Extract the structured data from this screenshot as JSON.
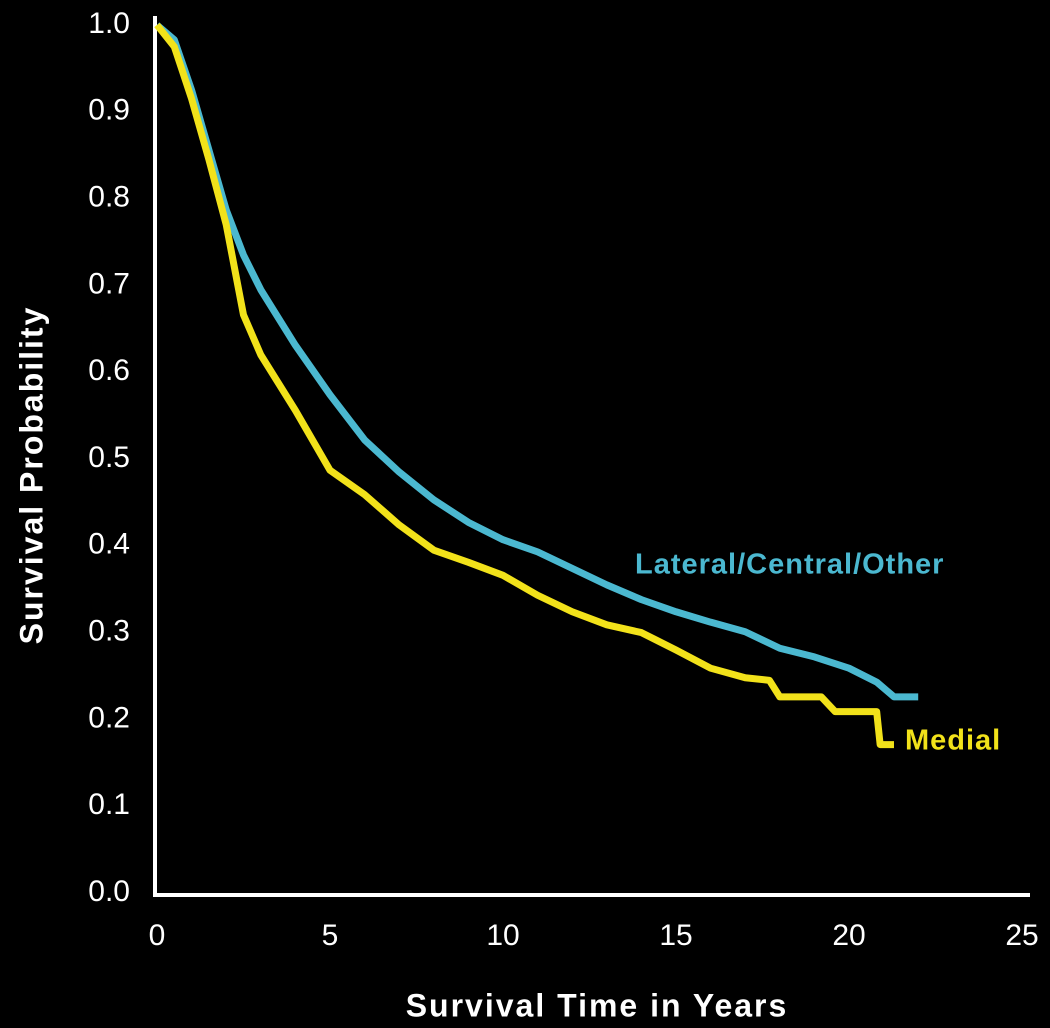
{
  "chart_data": {
    "type": "line",
    "xlabel": "Survival Time in Years",
    "ylabel": "Survival Probability",
    "xlim": [
      0,
      25
    ],
    "xticks": [
      0,
      5,
      10,
      15,
      20,
      25
    ],
    "ylim": [
      0,
      1
    ],
    "yticks": [
      {
        "value": 0,
        "label": "0.0"
      },
      0.1,
      0.2,
      0.3,
      0.4,
      0.5,
      0.6,
      0.7,
      0.8,
      0.9,
      {
        "value": 1,
        "label": "1.0"
      }
    ],
    "grid": false,
    "series": [
      {
        "name": "Lateral/Central/Other",
        "color": "#4bb8d0",
        "x": [
          0,
          0.5,
          1,
          1.5,
          2,
          2.5,
          3,
          4,
          5,
          6,
          7,
          8,
          9,
          10,
          11,
          12,
          13,
          14,
          15,
          16,
          17,
          18,
          19,
          20,
          20.8,
          21.3,
          22
        ],
        "values": [
          1.0,
          0.983,
          0.925,
          0.856,
          0.787,
          0.735,
          0.695,
          0.631,
          0.574,
          0.522,
          0.485,
          0.453,
          0.427,
          0.407,
          0.393,
          0.374,
          0.355,
          0.338,
          0.324,
          0.312,
          0.301,
          0.282,
          0.272,
          0.259,
          0.243,
          0.226,
          0.226
        ]
      },
      {
        "name": "Medial",
        "color": "#f2e21a",
        "x": [
          0,
          0.5,
          1,
          1.5,
          2,
          2.5,
          3,
          4,
          5,
          6,
          7,
          8,
          9,
          10,
          11,
          12,
          13,
          14,
          15,
          16,
          17,
          17.7,
          18,
          19.2,
          19.6,
          20.8,
          20.9,
          21.3
        ],
        "values": [
          1.0,
          0.975,
          0.915,
          0.845,
          0.77,
          0.666,
          0.62,
          0.556,
          0.487,
          0.459,
          0.424,
          0.395,
          0.381,
          0.366,
          0.343,
          0.324,
          0.309,
          0.3,
          0.28,
          0.259,
          0.248,
          0.245,
          0.226,
          0.226,
          0.209,
          0.209,
          0.171,
          0.171
        ]
      }
    ]
  }
}
